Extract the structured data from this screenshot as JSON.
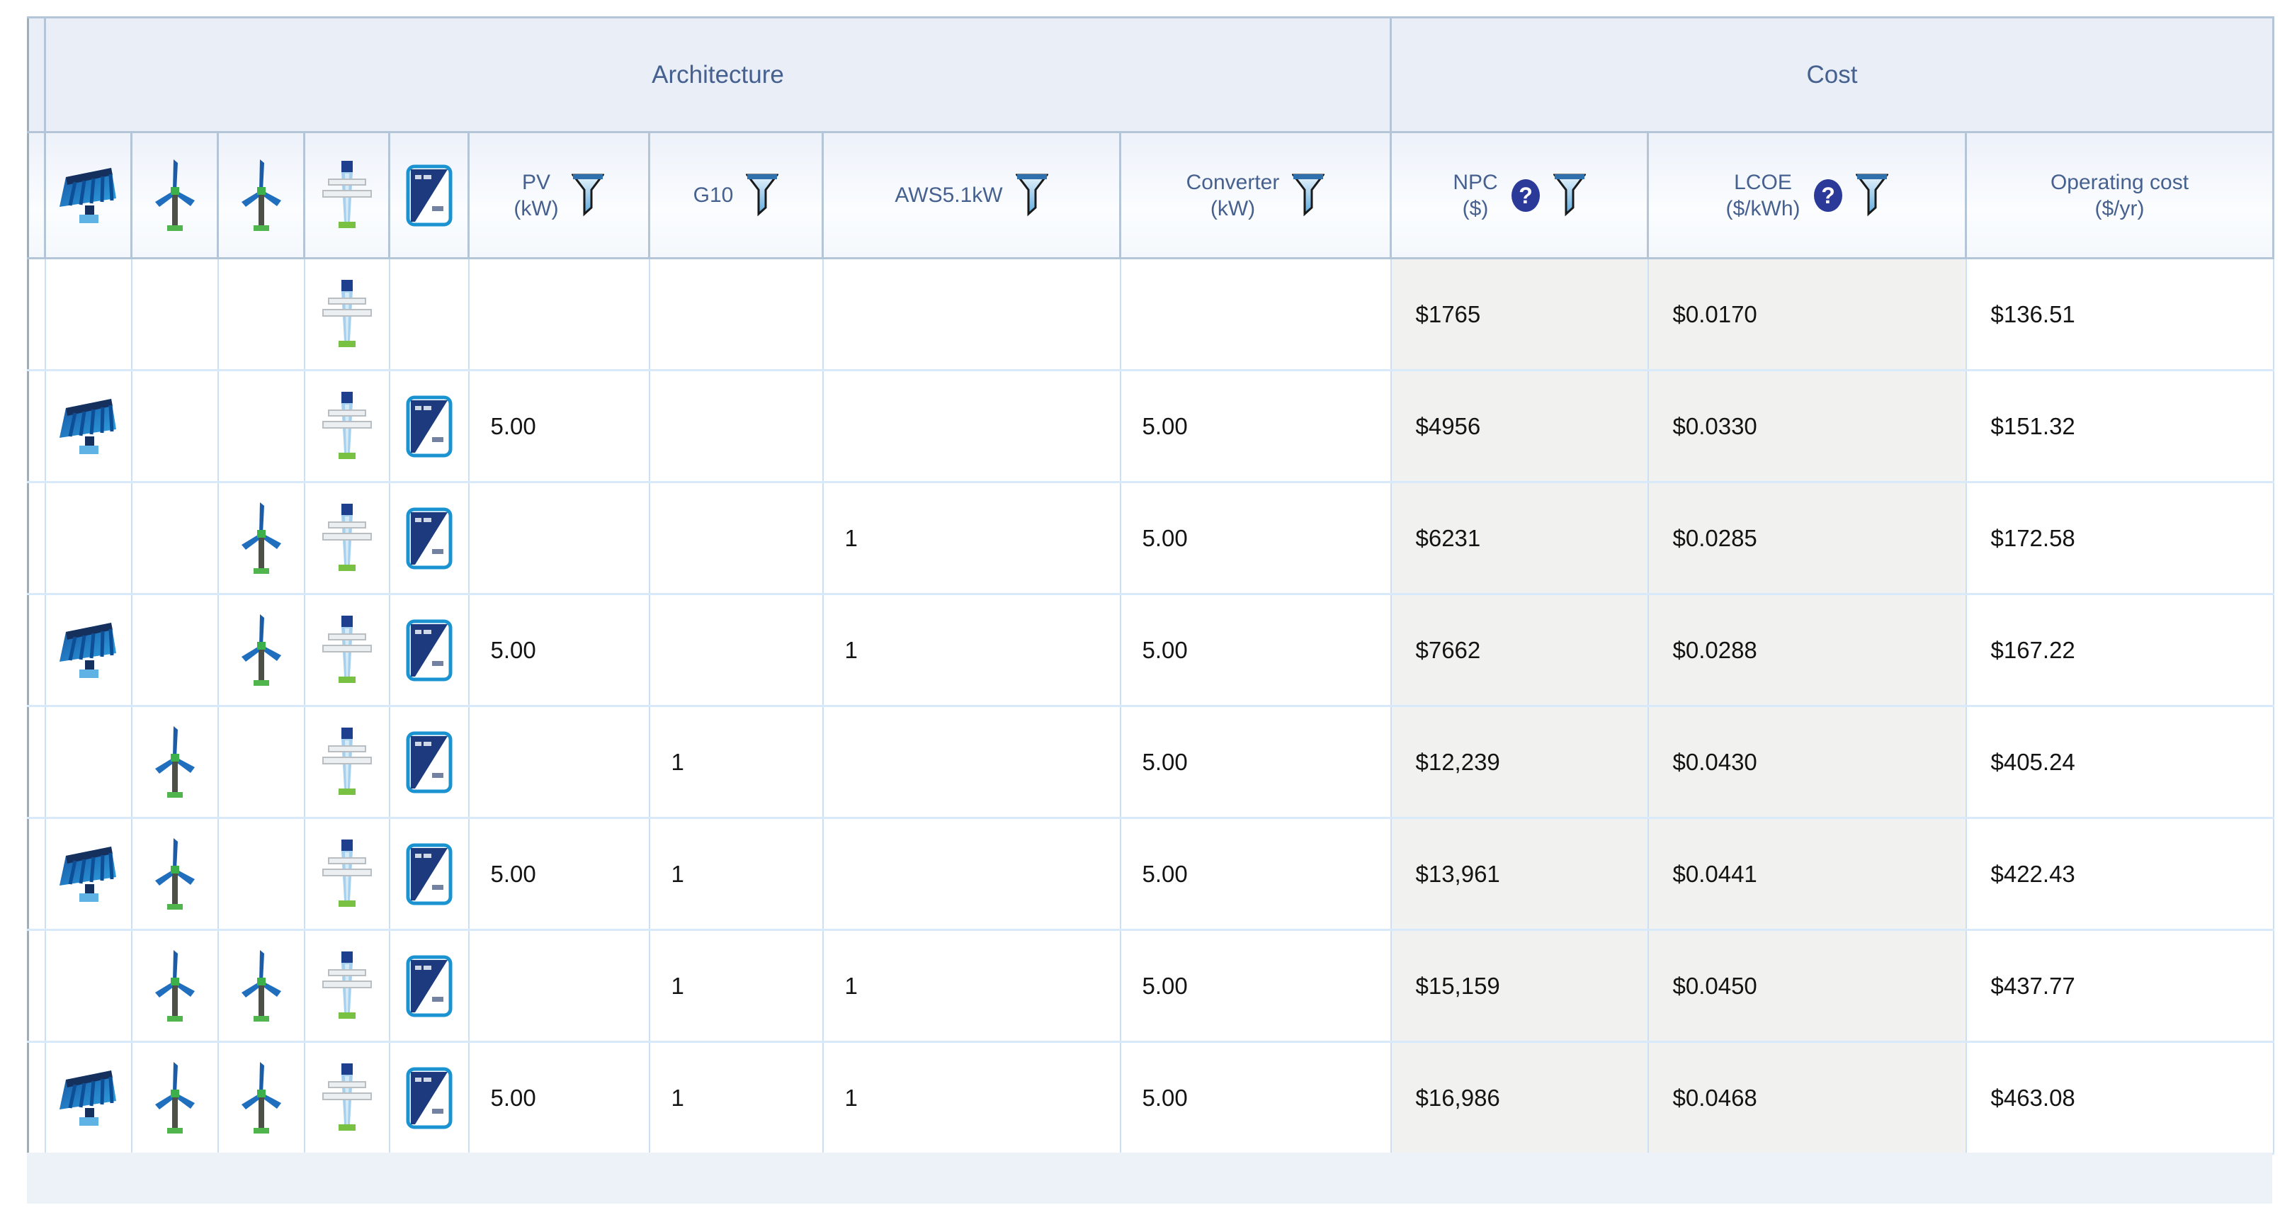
{
  "table": {
    "groups": {
      "architecture": "Architecture",
      "cost": "Cost"
    },
    "icon_columns": [
      "solar-panel-icon",
      "wind-turbine-icon",
      "wind-turbine-icon",
      "grid-tower-icon",
      "converter-icon"
    ],
    "headers": {
      "pv": {
        "label": "PV",
        "unit": "(kW)",
        "filter": true,
        "help": false
      },
      "g10": {
        "label": "G10",
        "unit": "",
        "filter": true,
        "help": false
      },
      "aws": {
        "label": "AWS5.1kW",
        "unit": "",
        "filter": true,
        "help": false
      },
      "converter": {
        "label": "Converter",
        "unit": "(kW)",
        "filter": true,
        "help": false
      },
      "npc": {
        "label": "NPC",
        "unit": "($)",
        "filter": true,
        "help": true
      },
      "lcoe": {
        "label": "LCOE",
        "unit": "($/kWh)",
        "filter": true,
        "help": true
      },
      "operating_cost": {
        "label": "Operating cost",
        "unit": "($/yr)",
        "filter": false,
        "help": false
      }
    },
    "rows": [
      {
        "icons": {
          "pv": false,
          "turbine1": false,
          "turbine2": false,
          "grid": true,
          "converter": false
        },
        "values": {
          "pv_kw": "",
          "g10": "",
          "aws": "",
          "converter_kw": "",
          "npc": "$1765",
          "lcoe": "$0.0170",
          "operating_cost": "$136.51"
        }
      },
      {
        "icons": {
          "pv": true,
          "turbine1": false,
          "turbine2": false,
          "grid": true,
          "converter": true
        },
        "values": {
          "pv_kw": "5.00",
          "g10": "",
          "aws": "",
          "converter_kw": "5.00",
          "npc": "$4956",
          "lcoe": "$0.0330",
          "operating_cost": "$151.32"
        }
      },
      {
        "icons": {
          "pv": false,
          "turbine1": false,
          "turbine2": true,
          "grid": true,
          "converter": true
        },
        "values": {
          "pv_kw": "",
          "g10": "",
          "aws": "1",
          "converter_kw": "5.00",
          "npc": "$6231",
          "lcoe": "$0.0285",
          "operating_cost": "$172.58"
        }
      },
      {
        "icons": {
          "pv": true,
          "turbine1": false,
          "turbine2": true,
          "grid": true,
          "converter": true
        },
        "values": {
          "pv_kw": "5.00",
          "g10": "",
          "aws": "1",
          "converter_kw": "5.00",
          "npc": "$7662",
          "lcoe": "$0.0288",
          "operating_cost": "$167.22"
        }
      },
      {
        "icons": {
          "pv": false,
          "turbine1": true,
          "turbine2": false,
          "grid": true,
          "converter": true
        },
        "values": {
          "pv_kw": "",
          "g10": "1",
          "aws": "",
          "converter_kw": "5.00",
          "npc": "$12,239",
          "lcoe": "$0.0430",
          "operating_cost": "$405.24"
        }
      },
      {
        "icons": {
          "pv": true,
          "turbine1": true,
          "turbine2": false,
          "grid": true,
          "converter": true
        },
        "values": {
          "pv_kw": "5.00",
          "g10": "1",
          "aws": "",
          "converter_kw": "5.00",
          "npc": "$13,961",
          "lcoe": "$0.0441",
          "operating_cost": "$422.43"
        }
      },
      {
        "icons": {
          "pv": false,
          "turbine1": true,
          "turbine2": true,
          "grid": true,
          "converter": true
        },
        "values": {
          "pv_kw": "",
          "g10": "1",
          "aws": "1",
          "converter_kw": "5.00",
          "npc": "$15,159",
          "lcoe": "$0.0450",
          "operating_cost": "$437.77"
        }
      },
      {
        "icons": {
          "pv": true,
          "turbine1": true,
          "turbine2": true,
          "grid": true,
          "converter": true
        },
        "values": {
          "pv_kw": "5.00",
          "g10": "1",
          "aws": "1",
          "converter_kw": "5.00",
          "npc": "$16,986",
          "lcoe": "$0.0468",
          "operating_cost": "$463.08"
        }
      }
    ],
    "colors": {
      "header_text": "#46618f",
      "group_header_bg": "#e9eef7",
      "header_border": "#b3c5d7",
      "data_border": "#cbe0f4",
      "row_border": "#d8e9f9",
      "shaded_cell_bg": "#f1f1f0",
      "data_text": "#141414",
      "help_icon_bg": "#2b3a99",
      "funnel_top": "#2f71ad",
      "pv_panel_blue": "#1d7fc4",
      "turbine_blade_blue": "#1f6fbe",
      "hub_green": "#3cb14b",
      "grid_mast_blue": "#a6d0ec",
      "converter_navy": "#1d3a7e",
      "converter_border_blue": "#1b93d0"
    }
  }
}
